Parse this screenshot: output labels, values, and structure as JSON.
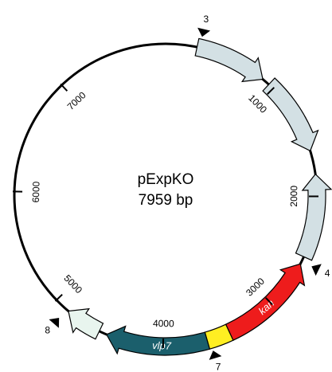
{
  "plasmid": {
    "name": "pExpKO",
    "length": {
      "value": 7959,
      "label": "7959 bp"
    },
    "ticks": [
      1000,
      2000,
      3000,
      4000,
      5000,
      6000,
      7000
    ],
    "features": [
      "kan",
      "vlp7"
    ],
    "markers": [
      "3",
      "4",
      "7",
      "8"
    ]
  }
}
